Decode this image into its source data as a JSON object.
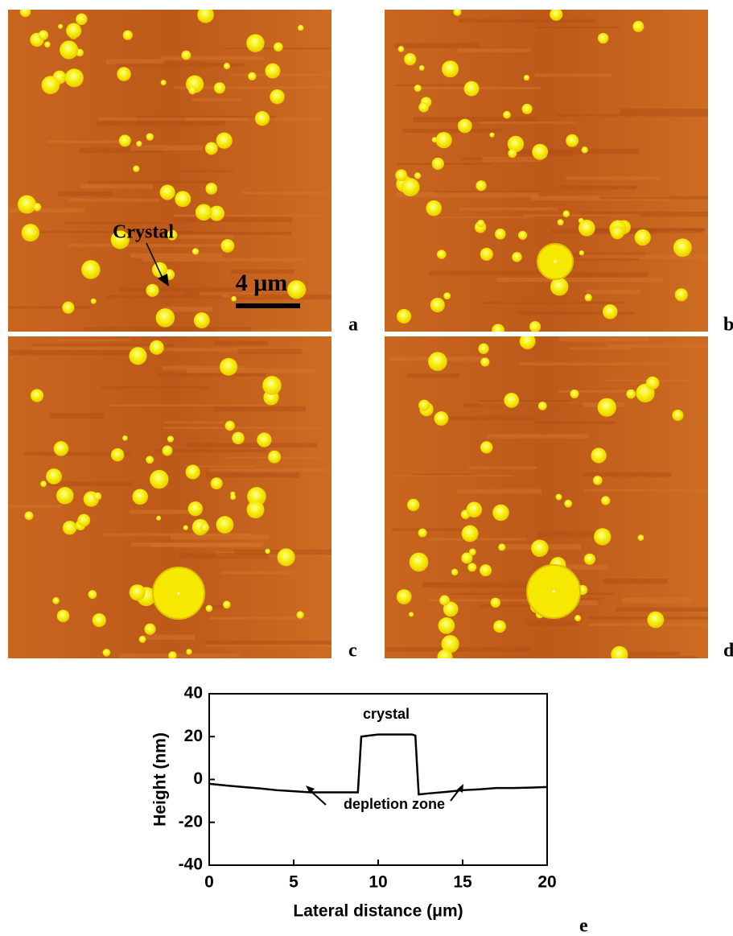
{
  "panel_labels": [
    "a",
    "b",
    "c",
    "d"
  ],
  "crystal_label": "Crystal",
  "scale_bar_label": "4 μm",
  "chart_data": {
    "type": "line",
    "xlabel": "Lateral distance (μm)",
    "ylabel": "Height (nm)",
    "annotations": [
      "crystal",
      "depletion zone"
    ],
    "panel_label": "e",
    "x": [
      0,
      1,
      2,
      3,
      4,
      5,
      6,
      7,
      8,
      8.8,
      9.0,
      9.5,
      10,
      11,
      12,
      12.2,
      12.4,
      13,
      14,
      15,
      16,
      17,
      18,
      19,
      20
    ],
    "values": [
      -2,
      -2.8,
      -3.5,
      -4.2,
      -5,
      -5.5,
      -6,
      -6,
      -6,
      -6,
      20,
      20.5,
      21,
      21,
      21,
      20.5,
      -7,
      -6.5,
      -5.8,
      -5,
      -4.6,
      -4,
      -4,
      -3.8,
      -3.5
    ],
    "color": "#000000",
    "xlim": [
      0,
      20
    ],
    "ylim": [
      -40,
      40
    ],
    "xticks": [
      0,
      5,
      10,
      15,
      20
    ],
    "yticks": [
      -40,
      -20,
      0,
      20,
      40
    ]
  }
}
